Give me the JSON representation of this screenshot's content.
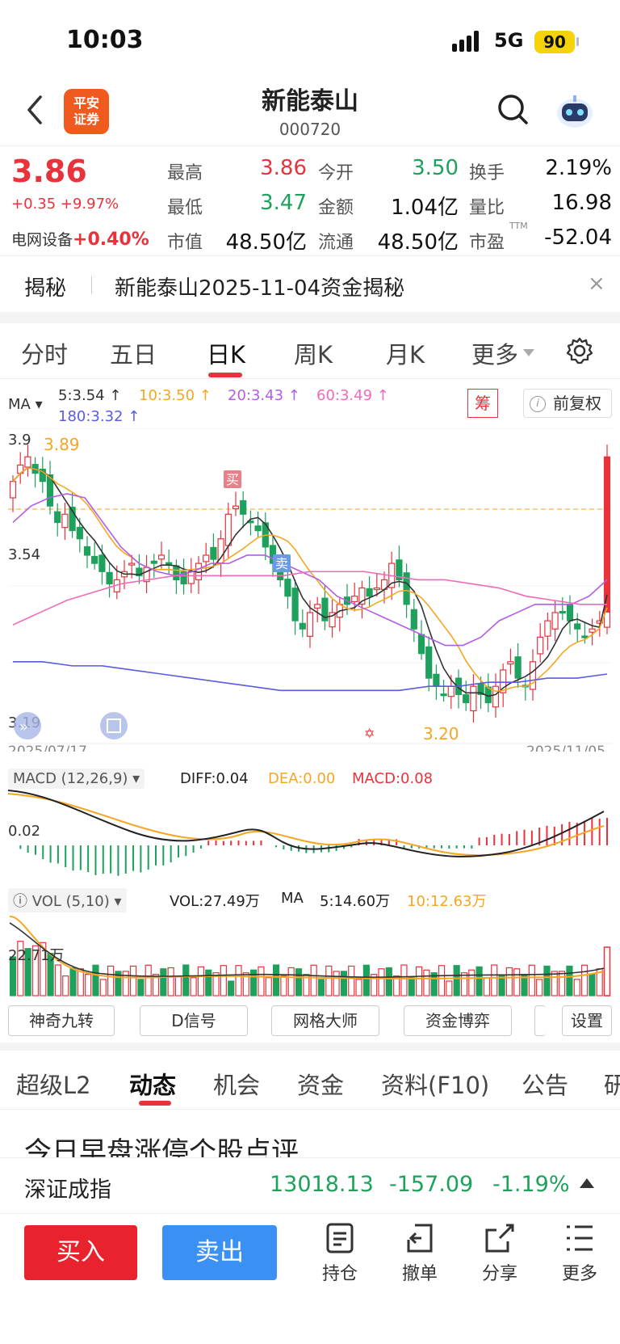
{
  "status_bar": {
    "time": "10:03",
    "network": "5G",
    "battery": "90"
  },
  "header": {
    "stock_name": "新能泰山",
    "stock_code": "000720",
    "logo_text": "平安证券"
  },
  "quote": {
    "price": "3.86",
    "change": "+0.35 +9.97%",
    "sector_name": "电网设备",
    "sector_pct": "+0.40%",
    "fields": [
      {
        "label": "最高",
        "value": "3.86",
        "color": "red"
      },
      {
        "label": "今开",
        "value": "3.50",
        "color": "green"
      },
      {
        "label": "换手",
        "value": "2.19%",
        "color": "black"
      },
      {
        "label": "最低",
        "value": "3.47",
        "color": "green"
      },
      {
        "label": "金额",
        "value": "1.04亿",
        "color": "black"
      },
      {
        "label": "量比",
        "value": "16.98",
        "color": "black"
      },
      {
        "label": "市值",
        "value": "48.50亿",
        "color": "black"
      },
      {
        "label": "流通",
        "value": "48.50亿",
        "color": "black"
      },
      {
        "label": "市盈",
        "value": "-52.04",
        "color": "black",
        "sup": "TTM"
      }
    ]
  },
  "banner": {
    "tag": "揭秘",
    "text": "新能泰山2025-11-04资金揭秘",
    "close": "×"
  },
  "chart_tabs": [
    "分时",
    "五日",
    "日K",
    "周K",
    "月K",
    "更多"
  ],
  "chart_tab_active": "日K",
  "ma_legend": {
    "label": "MA",
    "items": [
      {
        "text": "5:3.54 ↑",
        "color": "#333333"
      },
      {
        "text": "10:3.50 ↑",
        "color": "#f5a623"
      },
      {
        "text": "20:3.43 ↑",
        "color": "#b45ce6"
      },
      {
        "text": "60:3.49 ↑",
        "color": "#f06ab8"
      },
      {
        "text": "180:3.32 ↑",
        "color": "#5a5ae6"
      }
    ],
    "chip_button": "筹",
    "adjust_button": "前复权"
  },
  "kline": {
    "y_labels": [
      "3.9",
      "3.54",
      "3.19"
    ],
    "high_label": "3.89",
    "low_label": "3.20",
    "buy_marker": "买",
    "sell_marker": "卖",
    "date_start": "2025/07/17",
    "date_end": "2025/11/05"
  },
  "macd": {
    "title": "MACD (12,26,9)",
    "diff": "DIFF:0.04",
    "dea": "DEA:0.00",
    "macd": "MACD:0.08",
    "y_label": "0.02"
  },
  "vol": {
    "title": "VOL (5,10)",
    "vol": "VOL:27.49万",
    "ma_label": "MA",
    "ma5": "5:14.60万",
    "ma10": "10:12.63万",
    "y_label": "22.71万"
  },
  "tools": [
    "神奇九转",
    "D信号",
    "网格大师",
    "资金博弈",
    "设置"
  ],
  "bottom_tabs": [
    "超级L2",
    "动态",
    "机会",
    "资金",
    "资料(F10)",
    "公告",
    "研"
  ],
  "bottom_tab_active": "动态",
  "news_title": "今日早盘涨停个股点评",
  "index": {
    "name": "深证成指",
    "value": "13018.13",
    "change": "-157.09",
    "pct": "-1.19%"
  },
  "actions": {
    "buy": "买入",
    "sell": "卖出",
    "items": [
      "持仓",
      "撤单",
      "分享",
      "更多"
    ]
  }
}
